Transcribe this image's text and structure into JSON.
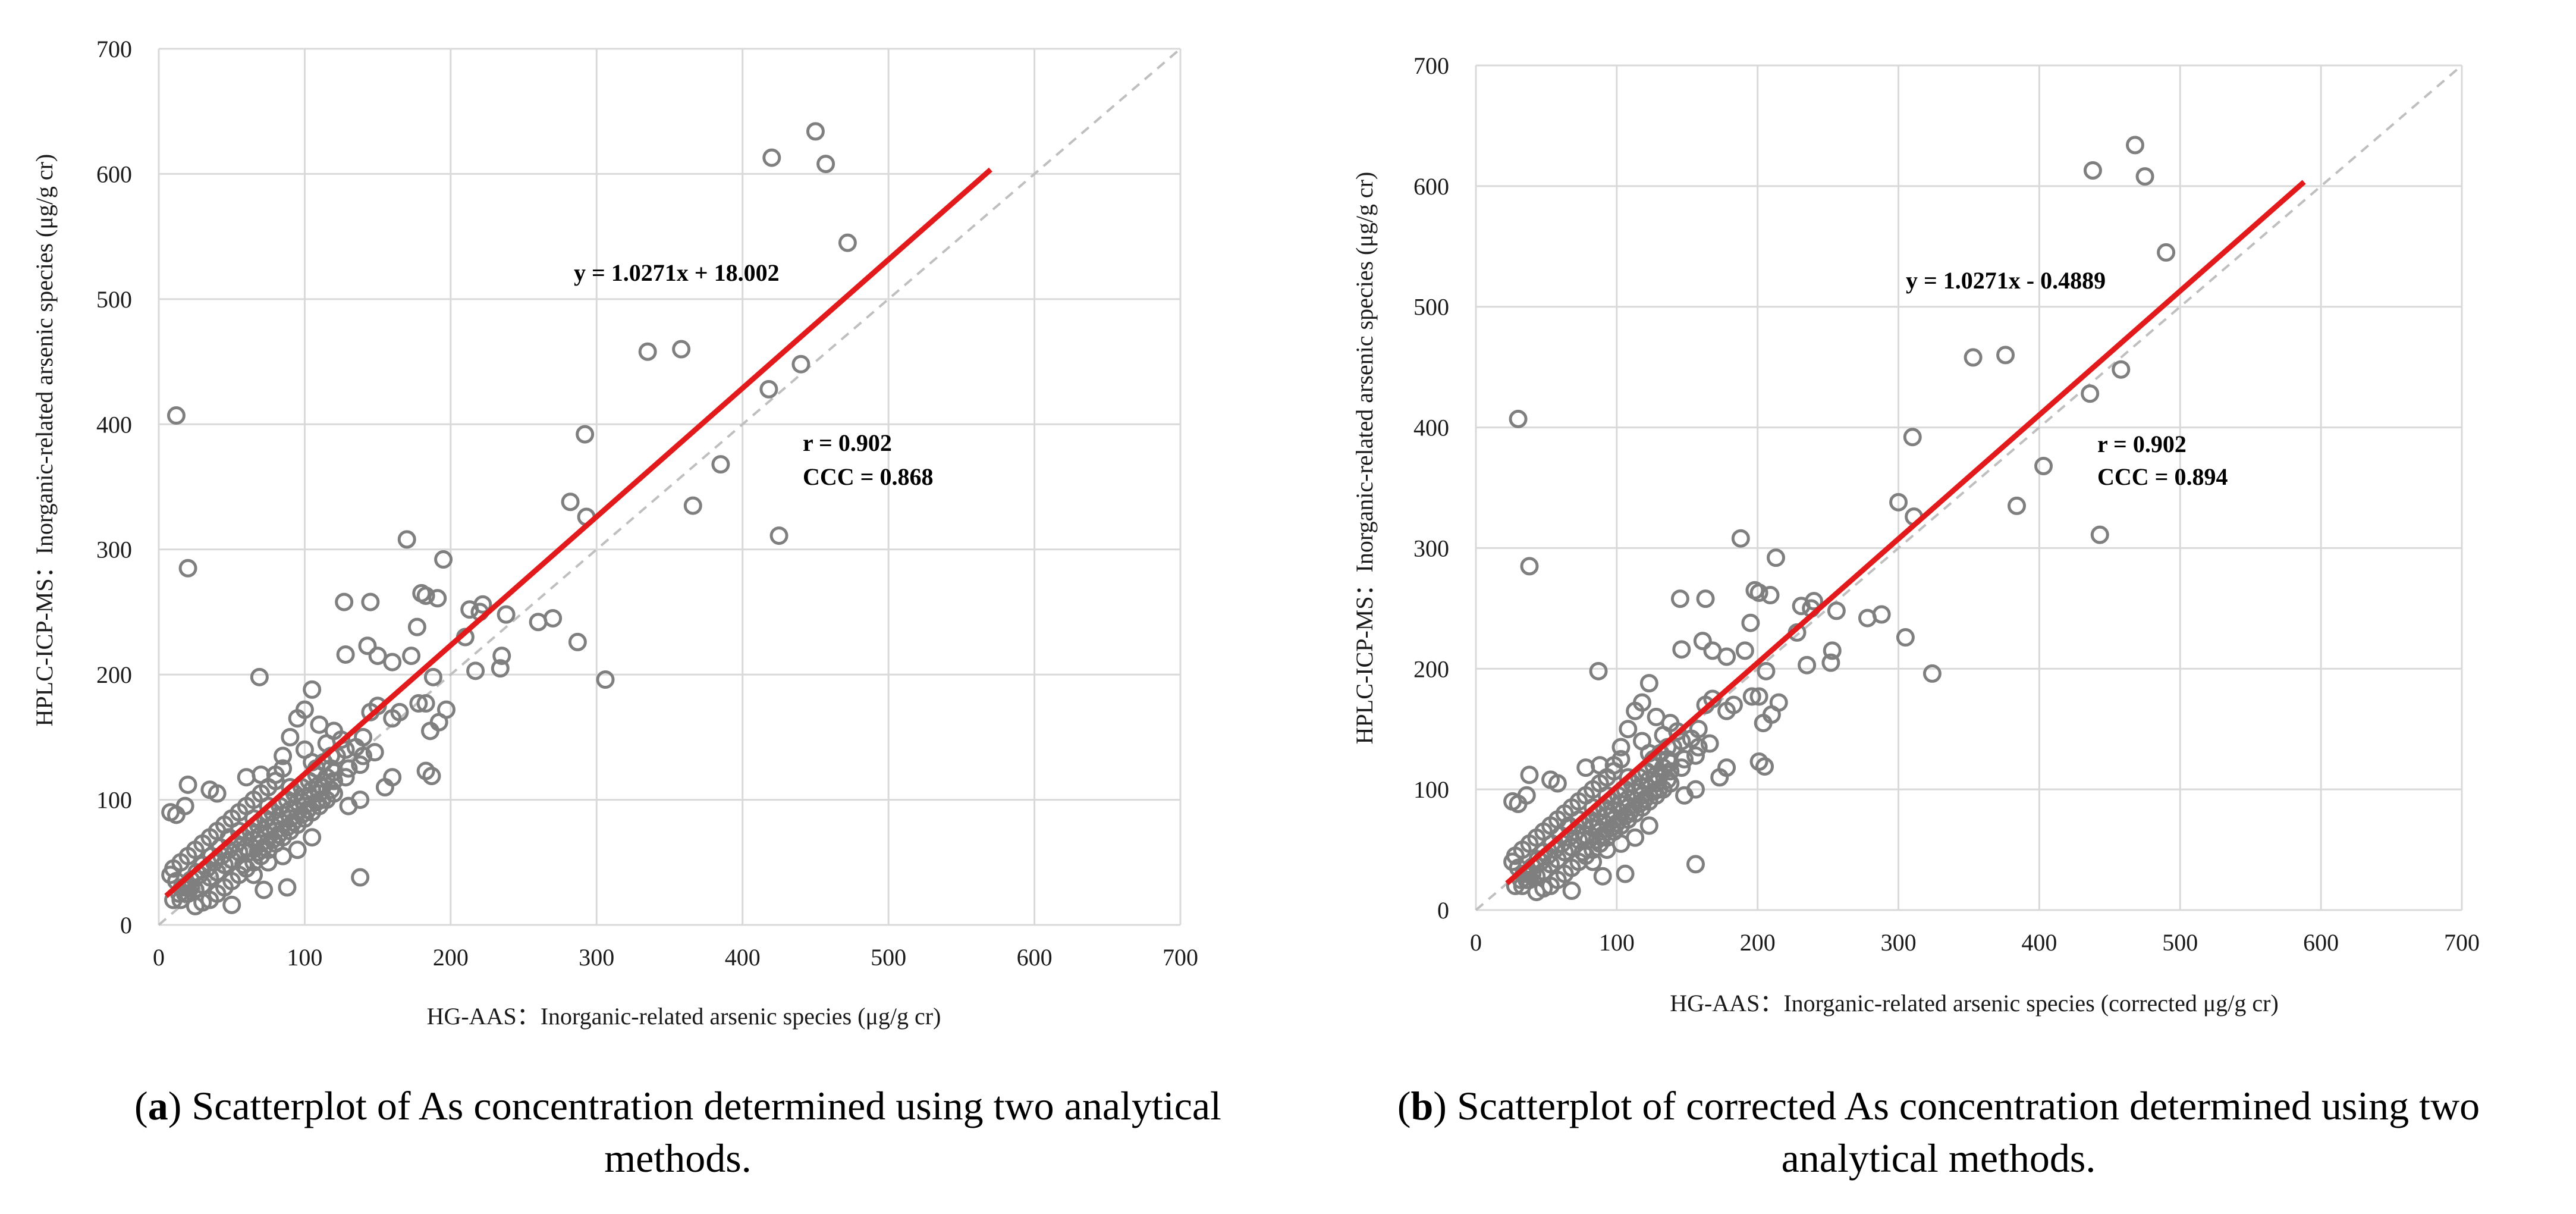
{
  "chart_data": [
    {
      "type": "scatter",
      "panel": "a",
      "xlabel": "HG-AAS：Inorganic-related arsenic species (μg/g cr)",
      "ylabel": "HPLC-ICP-MS：Inorganic-related arsenic species (μg/g cr)",
      "xlim": [
        0,
        700
      ],
      "ylim": [
        0,
        700
      ],
      "xticks": [
        "0",
        "100",
        "200",
        "300",
        "400",
        "500",
        "600",
        "700"
      ],
      "yticks": [
        "0",
        "100",
        "200",
        "300",
        "400",
        "500",
        "600",
        "700"
      ],
      "grid": true,
      "identity_line": true,
      "fit": {
        "slope": 1.0271,
        "intercept": 18.002,
        "x_range": [
          5,
          570
        ],
        "color": "#e31a1c"
      },
      "equation": "y = 1.0271x + 18.002",
      "r_label": "r = 0.902",
      "ccc_label": "CCC = 0.868",
      "points": [
        [
          12,
          407
        ],
        [
          20,
          285
        ],
        [
          450,
          634
        ],
        [
          420,
          613
        ],
        [
          457,
          608
        ],
        [
          472,
          545
        ],
        [
          335,
          458
        ],
        [
          358,
          460
        ],
        [
          440,
          448
        ],
        [
          418,
          428
        ],
        [
          292,
          392
        ],
        [
          385,
          368
        ],
        [
          282,
          338
        ],
        [
          293,
          326
        ],
        [
          366,
          335
        ],
        [
          425,
          311
        ],
        [
          170,
          308
        ],
        [
          195,
          292
        ],
        [
          260,
          242
        ],
        [
          287,
          226
        ],
        [
          306,
          196
        ],
        [
          270,
          245
        ],
        [
          238,
          248
        ],
        [
          220,
          250
        ],
        [
          222,
          256
        ],
        [
          213,
          252
        ],
        [
          235,
          215
        ],
        [
          234,
          205
        ],
        [
          217,
          203
        ],
        [
          210,
          230
        ],
        [
          180,
          265
        ],
        [
          183,
          263
        ],
        [
          191,
          261
        ],
        [
          127,
          258
        ],
        [
          145,
          258
        ],
        [
          177,
          238
        ],
        [
          143,
          223
        ],
        [
          128,
          216
        ],
        [
          150,
          215
        ],
        [
          160,
          210
        ],
        [
          173,
          215
        ],
        [
          69,
          198
        ],
        [
          105,
          188
        ],
        [
          188,
          198
        ],
        [
          178,
          177
        ],
        [
          183,
          177
        ],
        [
          197,
          172
        ],
        [
          192,
          162
        ],
        [
          186,
          155
        ],
        [
          183,
          123
        ],
        [
          187,
          119
        ],
        [
          160,
          165
        ],
        [
          165,
          170
        ],
        [
          150,
          175
        ],
        [
          145,
          170
        ],
        [
          140,
          150
        ],
        [
          138,
          38
        ],
        [
          88,
          30
        ],
        [
          72,
          28
        ],
        [
          50,
          16
        ],
        [
          130,
          95
        ],
        [
          138,
          100
        ],
        [
          155,
          110
        ],
        [
          160,
          118
        ],
        [
          125,
          148
        ],
        [
          120,
          155
        ],
        [
          115,
          145
        ],
        [
          110,
          160
        ],
        [
          100,
          172
        ],
        [
          95,
          165
        ],
        [
          100,
          140
        ],
        [
          105,
          130
        ],
        [
          108,
          120
        ],
        [
          112,
          110
        ],
        [
          118,
          125
        ],
        [
          122,
          135
        ],
        [
          128,
          140
        ],
        [
          135,
          142
        ],
        [
          90,
          150
        ],
        [
          85,
          135
        ],
        [
          80,
          120
        ],
        [
          75,
          110
        ],
        [
          70,
          105
        ],
        [
          65,
          100
        ],
        [
          60,
          95
        ],
        [
          55,
          90
        ],
        [
          50,
          85
        ],
        [
          45,
          80
        ],
        [
          40,
          75
        ],
        [
          35,
          70
        ],
        [
          30,
          65
        ],
        [
          25,
          60
        ],
        [
          20,
          55
        ],
        [
          15,
          50
        ],
        [
          10,
          45
        ],
        [
          8,
          40
        ],
        [
          12,
          35
        ],
        [
          16,
          30
        ],
        [
          20,
          25
        ],
        [
          25,
          28
        ],
        [
          30,
          32
        ],
        [
          35,
          38
        ],
        [
          40,
          42
        ],
        [
          45,
          48
        ],
        [
          50,
          52
        ],
        [
          55,
          58
        ],
        [
          60,
          62
        ],
        [
          65,
          68
        ],
        [
          70,
          72
        ],
        [
          75,
          78
        ],
        [
          80,
          82
        ],
        [
          85,
          88
        ],
        [
          90,
          92
        ],
        [
          95,
          98
        ],
        [
          100,
          102
        ],
        [
          105,
          108
        ],
        [
          110,
          112
        ],
        [
          115,
          118
        ],
        [
          120,
          122
        ],
        [
          60,
          45
        ],
        [
          65,
          50
        ],
        [
          70,
          55
        ],
        [
          75,
          60
        ],
        [
          80,
          65
        ],
        [
          85,
          70
        ],
        [
          90,
          75
        ],
        [
          95,
          80
        ],
        [
          100,
          85
        ],
        [
          105,
          90
        ],
        [
          110,
          95
        ],
        [
          115,
          100
        ],
        [
          120,
          105
        ],
        [
          55,
          40
        ],
        [
          50,
          35
        ],
        [
          45,
          30
        ],
        [
          40,
          25
        ],
        [
          35,
          20
        ],
        [
          30,
          18
        ],
        [
          25,
          15
        ],
        [
          15,
          20
        ],
        [
          18,
          25
        ],
        [
          22,
          30
        ],
        [
          28,
          40
        ],
        [
          33,
          45
        ],
        [
          38,
          50
        ],
        [
          43,
          55
        ],
        [
          48,
          60
        ],
        [
          53,
          65
        ],
        [
          58,
          70
        ],
        [
          63,
          75
        ],
        [
          68,
          80
        ],
        [
          73,
          85
        ],
        [
          78,
          90
        ],
        [
          83,
          95
        ],
        [
          88,
          100
        ],
        [
          93,
          105
        ],
        [
          98,
          110
        ],
        [
          103,
          115
        ],
        [
          108,
          125
        ],
        [
          113,
          130
        ],
        [
          118,
          135
        ],
        [
          20,
          112
        ],
        [
          35,
          108
        ],
        [
          40,
          105
        ],
        [
          8,
          90
        ],
        [
          12,
          88
        ],
        [
          18,
          95
        ],
        [
          60,
          118
        ],
        [
          70,
          120
        ],
        [
          80,
          115
        ],
        [
          85,
          125
        ],
        [
          90,
          110
        ],
        [
          55,
          75
        ],
        [
          65,
          85
        ],
        [
          75,
          95
        ],
        [
          48,
          70
        ],
        [
          42,
          62
        ],
        [
          36,
          55
        ],
        [
          30,
          48
        ],
        [
          26,
          42
        ],
        [
          22,
          36
        ],
        [
          18,
          30
        ],
        [
          14,
          25
        ],
        [
          10,
          20
        ],
        [
          70,
          65
        ],
        [
          80,
          75
        ],
        [
          90,
          85
        ],
        [
          100,
          95
        ],
        [
          110,
          105
        ],
        [
          120,
          115
        ],
        [
          130,
          125
        ],
        [
          140,
          135
        ],
        [
          62,
          58
        ],
        [
          72,
          62
        ],
        [
          82,
          72
        ],
        [
          92,
          82
        ],
        [
          102,
          92
        ],
        [
          112,
          100
        ],
        [
          95,
          60
        ],
        [
          105,
          70
        ],
        [
          85,
          55
        ],
        [
          75,
          50
        ],
        [
          65,
          40
        ],
        [
          58,
          48
        ],
        [
          68,
          58
        ],
        [
          78,
          68
        ],
        [
          88,
          78
        ],
        [
          98,
          88
        ],
        [
          108,
          98
        ],
        [
          118,
          108
        ],
        [
          128,
          118
        ],
        [
          138,
          128
        ],
        [
          148,
          138
        ]
      ]
    },
    {
      "type": "scatter",
      "panel": "b",
      "xlabel": "HG-AAS：Inorganic-related arsenic species (corrected μg/g cr)",
      "ylabel": "HPLC-ICP-MS：Inorganic-related arsenic species (μg/g cr)",
      "xlim": [
        0,
        700
      ],
      "ylim": [
        0,
        700
      ],
      "xticks": [
        "0",
        "100",
        "200",
        "300",
        "400",
        "500",
        "600",
        "700"
      ],
      "yticks": [
        "0",
        "100",
        "200",
        "300",
        "400",
        "500",
        "600",
        "700"
      ],
      "grid": true,
      "identity_line": true,
      "fit": {
        "slope": 1.0271,
        "intercept": -0.4889,
        "x_range": [
          22,
          588
        ],
        "color": "#e31a1c"
      },
      "equation": "y = 1.0271x - 0.4889",
      "r_label": "r = 0.902",
      "ccc_label": "CCC = 0.894",
      "x_shift": 18
    }
  ],
  "captions": [
    {
      "label": "a",
      "text": " Scatterplot of As concentration determined using two analytical methods."
    },
    {
      "label": "b",
      "text": " Scatterplot of corrected As concentration determined using two analytical methods."
    }
  ],
  "colors": {
    "grid": "#d9d9d9",
    "points": "#7f7f7f",
    "fit": "#e31a1c",
    "identity": "#bfbfbf"
  }
}
